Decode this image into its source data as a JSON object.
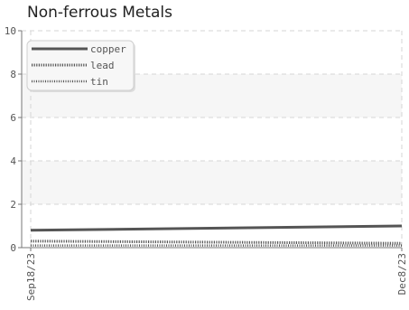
{
  "chart_data": {
    "type": "line",
    "title": "Non-ferrous Metals",
    "xlabel": "",
    "ylabel": "",
    "x": [
      "Sep18/23",
      "Dec8/23"
    ],
    "ylim": [
      0,
      10
    ],
    "yticks": [
      0,
      2,
      4,
      6,
      8,
      10
    ],
    "grid": true,
    "legend_position": "top-left",
    "series": [
      {
        "name": "copper",
        "values": [
          0.8,
          1.0
        ],
        "color": "#555555",
        "style": "solid"
      },
      {
        "name": "lead",
        "values": [
          0.3,
          0.2
        ],
        "color": "#555555",
        "style": "dotted-heavy"
      },
      {
        "name": "tin",
        "values": [
          0.1,
          0.1
        ],
        "color": "#555555",
        "style": "dotted-light"
      }
    ]
  }
}
